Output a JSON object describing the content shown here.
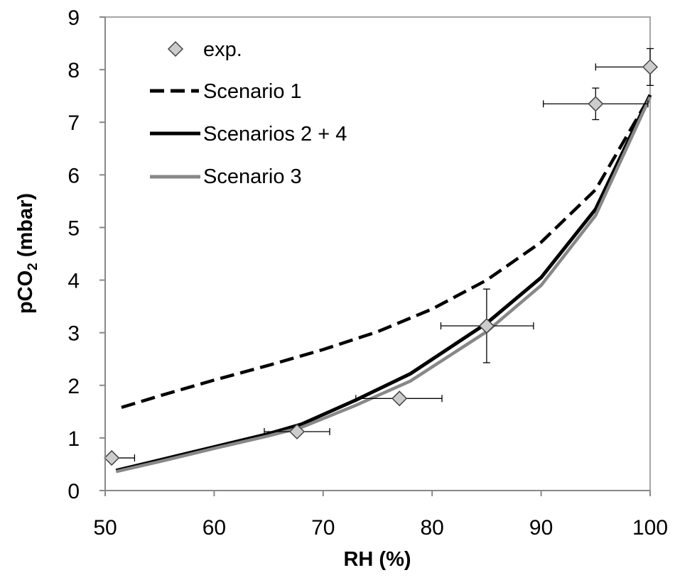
{
  "chart_data": {
    "type": "line",
    "xlabel": "RH (%)",
    "ylabel": "pCO",
    "ylabel_sub": "2",
    "ylabel_unit": " (mbar)",
    "xlim": [
      50,
      100
    ],
    "ylim": [
      0,
      9
    ],
    "xticks": [
      "50",
      "60",
      "70",
      "80",
      "90",
      "100"
    ],
    "yticks": [
      "0",
      "1",
      "2",
      "3",
      "4",
      "5",
      "6",
      "7",
      "8",
      "9"
    ],
    "grid": false,
    "legend_position": "top-left",
    "series": [
      {
        "name": "exp.",
        "kind": "scatter",
        "marker": "diamond",
        "color": "#cccccc",
        "points": [
          {
            "x": 50.6,
            "y": 0.62,
            "xerr": [
              50.6,
              52.7
            ],
            "yerr": null
          },
          {
            "x": 67.6,
            "y": 1.12,
            "xerr": [
              64.6,
              70.6
            ],
            "yerr": null
          },
          {
            "x": 77.0,
            "y": 1.75,
            "xerr": [
              73.0,
              80.9
            ],
            "yerr": null
          },
          {
            "x": 85.0,
            "y": 3.13,
            "xerr": [
              80.8,
              89.3
            ],
            "yerr": [
              2.43,
              3.83
            ]
          },
          {
            "x": 95.0,
            "y": 7.35,
            "xerr": [
              90.2,
              99.8
            ],
            "yerr": [
              7.05,
              7.65
            ]
          },
          {
            "x": 100.0,
            "y": 8.05,
            "xerr": [
              95.0,
              100.0
            ],
            "yerr": [
              7.7,
              8.4
            ]
          }
        ]
      },
      {
        "name": "Scenario 1",
        "kind": "line",
        "dash": true,
        "color": "#000000",
        "x": [
          51.5,
          55,
          60,
          65,
          70,
          75,
          80,
          85,
          90,
          95,
          100
        ],
        "y": [
          1.58,
          1.8,
          2.1,
          2.38,
          2.68,
          3.02,
          3.45,
          4.0,
          4.72,
          5.72,
          7.5
        ]
      },
      {
        "name": "Scenarios 2 + 4",
        "kind": "line",
        "dash": false,
        "color": "#000000",
        "x": [
          51,
          55,
          60,
          65,
          68,
          73,
          78,
          85,
          90,
          95,
          100
        ],
        "y": [
          0.38,
          0.58,
          0.83,
          1.08,
          1.26,
          1.72,
          2.22,
          3.18,
          4.05,
          5.35,
          7.52
        ]
      },
      {
        "name": "Scenario 3",
        "kind": "line",
        "dash": false,
        "color": "#888888",
        "x": [
          51,
          55,
          60,
          65,
          68,
          73,
          78,
          85,
          90,
          95,
          100
        ],
        "y": [
          0.36,
          0.55,
          0.8,
          1.04,
          1.2,
          1.62,
          2.08,
          3.02,
          3.9,
          5.23,
          7.48
        ]
      }
    ]
  }
}
